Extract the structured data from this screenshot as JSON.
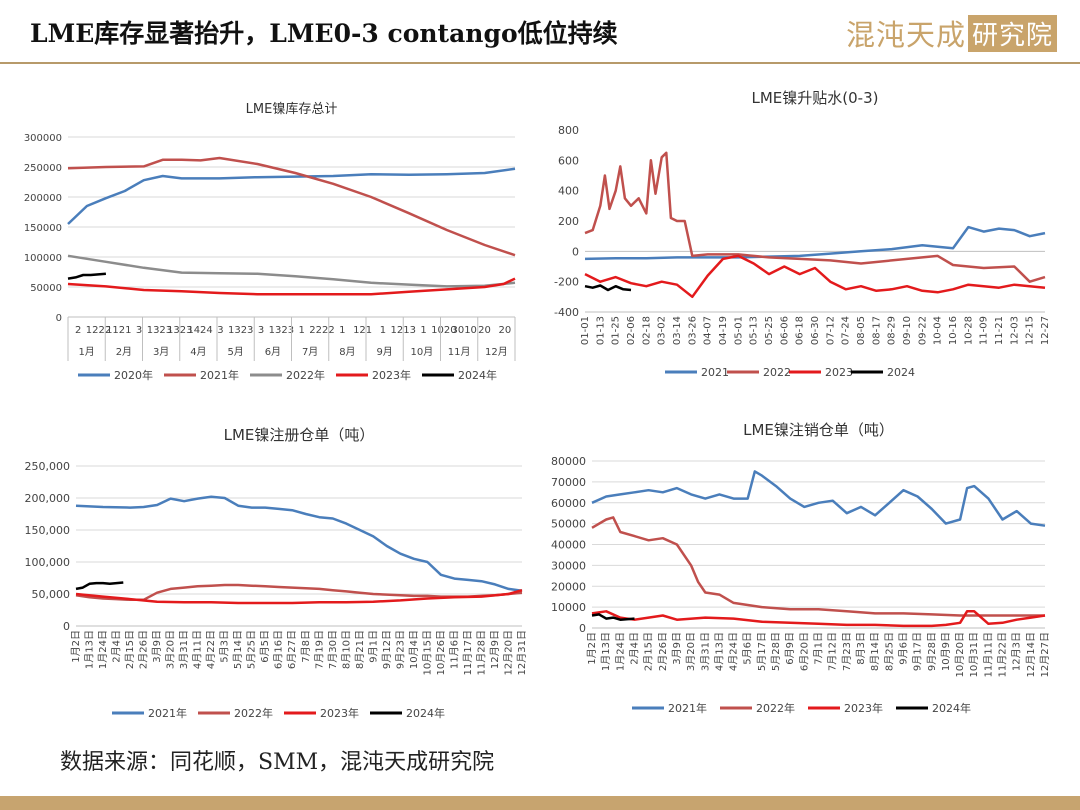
{
  "header": {
    "title": "LME库存显著抬升，LME0-3 contango低位持续",
    "logo_text": "混沌天成",
    "logo_box": "研究院"
  },
  "footer": {
    "source": "数据来源：同花顺，SMM，混沌天成研究院"
  },
  "colors": {
    "s2020": "#4a7ebb",
    "s2021": "#c0504d",
    "s2022": "#8c8c8c",
    "s2023": "#e31a1c",
    "s2024": "#000000"
  },
  "chart_data": [
    {
      "id": "inventory",
      "type": "line",
      "title": "LME镍库存总计",
      "ylim": [
        0,
        300000
      ],
      "yticks": [
        "0",
        "50000",
        "100000",
        "150000",
        "200000",
        "250000",
        "300000"
      ],
      "x_sublabels": [
        "2",
        "1222",
        "1121",
        "3",
        "1323",
        "1323",
        "1424",
        "3",
        "1323",
        "3",
        "1323",
        "1",
        "2222",
        "1",
        "121",
        "1",
        "1213",
        "1",
        "1020",
        "3010",
        "20",
        "20"
      ],
      "months": [
        "1月",
        "2月",
        "3月",
        "4月",
        "5月",
        "6月",
        "7月",
        "8月",
        "9月",
        "10月",
        "11月",
        "12月"
      ],
      "legend_position": "bottom",
      "series": [
        {
          "name": "2020年",
          "color": "#4a7ebb",
          "x": [
            0,
            0.5,
            1,
            1.5,
            2,
            2.5,
            3,
            4,
            5,
            6,
            7,
            8,
            9,
            10,
            11,
            11.8
          ],
          "values": [
            155000,
            185000,
            198000,
            210000,
            228000,
            235000,
            231000,
            231000,
            233000,
            234000,
            235000,
            238000,
            237000,
            238000,
            240000,
            247000
          ]
        },
        {
          "name": "2021年",
          "color": "#c0504d",
          "x": [
            0,
            1,
            2,
            2.5,
            3,
            3.5,
            4,
            5,
            6,
            7,
            8,
            9,
            10,
            11,
            11.8
          ],
          "values": [
            248000,
            250000,
            251000,
            262000,
            262000,
            261000,
            265000,
            255000,
            240000,
            222000,
            200000,
            173000,
            145000,
            120000,
            103000
          ]
        },
        {
          "name": "2022年",
          "color": "#8c8c8c",
          "x": [
            0,
            1,
            2,
            3,
            4,
            5,
            6,
            7,
            8,
            9,
            10,
            11,
            11.8
          ],
          "values": [
            102000,
            92000,
            82000,
            74000,
            73000,
            72000,
            68000,
            63000,
            57000,
            54000,
            51000,
            52000,
            57000
          ]
        },
        {
          "name": "2023年",
          "color": "#e31a1c",
          "x": [
            0,
            1,
            2,
            3,
            4,
            5,
            6,
            7,
            8,
            9,
            10,
            11,
            11.5,
            11.8
          ],
          "values": [
            55000,
            51000,
            45000,
            43000,
            40000,
            38000,
            38000,
            38000,
            38000,
            42000,
            46000,
            50000,
            55000,
            64000
          ]
        },
        {
          "name": "2024年",
          "color": "#000000",
          "x": [
            0,
            0.2,
            0.4,
            0.6,
            1.0
          ],
          "values": [
            64000,
            66000,
            70000,
            70000,
            72000
          ]
        }
      ]
    },
    {
      "id": "spread",
      "type": "line",
      "title": "LME镍升贴水(0-3)",
      "ylim": [
        -400,
        800
      ],
      "yticks": [
        "-400",
        "-200",
        "0",
        "200",
        "400",
        "600",
        "800"
      ],
      "categories": [
        "01-01",
        "01-13",
        "01-25",
        "02-06",
        "02-18",
        "03-02",
        "03-14",
        "03-26",
        "04-07",
        "04-19",
        "05-01",
        "05-13",
        "05-25",
        "06-06",
        "06-18",
        "06-30",
        "07-12",
        "07-24",
        "08-05",
        "08-17",
        "08-29",
        "09-10",
        "09-22",
        "10-04",
        "10-16",
        "10-28",
        "11-09",
        "11-21",
        "12-03",
        "12-15",
        "12-27"
      ],
      "legend_position": "bottom",
      "series": [
        {
          "name": "2021",
          "color": "#4a7ebb",
          "x": [
            0,
            2,
            4,
            6,
            8,
            10,
            12,
            14,
            16,
            18,
            20,
            22,
            24,
            25,
            26,
            27,
            28,
            29,
            30
          ],
          "values": [
            -50,
            -45,
            -45,
            -40,
            -40,
            -40,
            -35,
            -30,
            -15,
            0,
            15,
            40,
            20,
            160,
            130,
            150,
            140,
            100,
            120
          ]
        },
        {
          "name": "2022",
          "color": "#c0504d",
          "x": [
            0,
            0.5,
            1,
            1.3,
            1.6,
            2,
            2.3,
            2.6,
            3,
            3.5,
            4,
            4.3,
            4.6,
            5,
            5.3,
            5.6,
            6,
            6.5,
            7,
            8,
            9,
            10,
            12,
            14,
            16,
            18,
            20,
            22,
            23,
            24,
            26,
            28,
            29,
            30
          ],
          "values": [
            120,
            140,
            300,
            500,
            280,
            400,
            560,
            350,
            300,
            350,
            250,
            600,
            380,
            620,
            650,
            220,
            200,
            200,
            -30,
            -20,
            -20,
            -20,
            -40,
            -50,
            -60,
            -80,
            -60,
            -40,
            -30,
            -90,
            -110,
            -100,
            -200,
            -170
          ]
        },
        {
          "name": "2023",
          "color": "#e31a1c",
          "x": [
            0,
            1,
            2,
            3,
            4,
            5,
            6,
            7,
            8,
            9,
            10,
            11,
            12,
            13,
            14,
            15,
            16,
            17,
            18,
            19,
            20,
            21,
            22,
            23,
            24,
            25,
            26,
            27,
            28,
            29,
            30
          ],
          "values": [
            -150,
            -200,
            -170,
            -210,
            -230,
            -200,
            -220,
            -300,
            -160,
            -50,
            -30,
            -80,
            -150,
            -100,
            -150,
            -110,
            -200,
            -250,
            -230,
            -260,
            -250,
            -230,
            -260,
            -270,
            -250,
            -220,
            -230,
            -240,
            -220,
            -230,
            -240
          ]
        },
        {
          "name": "2024",
          "color": "#000000",
          "x": [
            0,
            0.5,
            1,
            1.5,
            2,
            2.5,
            3
          ],
          "values": [
            -230,
            -240,
            -225,
            -255,
            -230,
            -250,
            -255
          ]
        }
      ]
    },
    {
      "id": "registered",
      "type": "line",
      "title": "LME镍注册仓单（吨）",
      "ylim": [
        0,
        250000
      ],
      "yticks": [
        "0",
        "50,000",
        "100,000",
        "150,000",
        "200,000",
        "250,000"
      ],
      "categories": [
        "1月2日",
        "1月13日",
        "1月24日",
        "2月4日",
        "2月15日",
        "2月26日",
        "3月9日",
        "3月20日",
        "3月31日",
        "4月11日",
        "4月22日",
        "5月3日",
        "5月14日",
        "5月25日",
        "6月5日",
        "6月16日",
        "6月27日",
        "7月8日",
        "7月19日",
        "7月30日",
        "8月10日",
        "8月21日",
        "9月1日",
        "9月12日",
        "9月23日",
        "10月4日",
        "10月15日",
        "10月26日",
        "11月6日",
        "11月17日",
        "11月28日",
        "12月9日",
        "12月20日",
        "12月31日"
      ],
      "legend_position": "bottom",
      "series": [
        {
          "name": "2021年",
          "color": "#4a7ebb",
          "x": [
            0,
            2,
            4,
            5,
            6,
            7,
            8,
            9,
            10,
            11,
            12,
            13,
            14,
            15,
            16,
            17,
            18,
            19,
            20,
            21,
            22,
            23,
            24,
            25,
            26,
            27,
            28,
            29,
            30,
            31,
            32,
            33
          ],
          "values": [
            188000,
            186000,
            185000,
            186000,
            189000,
            199000,
            195000,
            199000,
            202000,
            200000,
            188000,
            185000,
            185000,
            183000,
            181000,
            175000,
            170000,
            168000,
            160000,
            150000,
            140000,
            125000,
            113000,
            105000,
            100000,
            80000,
            74000,
            72000,
            70000,
            65000,
            58000,
            55000
          ]
        },
        {
          "name": "2022年",
          "color": "#c0504d",
          "x": [
            0,
            1,
            2,
            3,
            4,
            5,
            6,
            7,
            8,
            9,
            10,
            11,
            12,
            13,
            14,
            15,
            16,
            17,
            18,
            19,
            20,
            21,
            22,
            23,
            24,
            25,
            26,
            27,
            28,
            29,
            30,
            31,
            32,
            33
          ],
          "values": [
            48000,
            45000,
            43000,
            42000,
            41000,
            41000,
            52000,
            58000,
            60000,
            62000,
            63000,
            64000,
            64000,
            63000,
            62000,
            61000,
            60000,
            59000,
            58000,
            56000,
            54000,
            52000,
            50000,
            49000,
            48000,
            47000,
            47000,
            46000,
            46000,
            46000,
            47000,
            48000,
            50000,
            52000
          ]
        },
        {
          "name": "2023年",
          "color": "#e31a1c",
          "x": [
            0,
            2,
            4,
            6,
            8,
            10,
            12,
            14,
            16,
            18,
            20,
            22,
            24,
            26,
            28,
            30,
            32,
            33
          ],
          "values": [
            50000,
            46000,
            42000,
            38000,
            37000,
            37000,
            36000,
            36000,
            36000,
            37000,
            37000,
            38000,
            40000,
            43000,
            45000,
            46000,
            50000,
            56000
          ]
        },
        {
          "name": "2024年",
          "color": "#000000",
          "x": [
            0,
            0.5,
            1,
            1.5,
            2,
            2.5,
            3.5
          ],
          "values": [
            58000,
            60000,
            66000,
            67000,
            67000,
            66000,
            68000
          ]
        }
      ]
    },
    {
      "id": "cancelled",
      "type": "line",
      "title": "LME镍注销仓单（吨）",
      "ylim": [
        0,
        80000
      ],
      "yticks": [
        "0",
        "10000",
        "20000",
        "30000",
        "40000",
        "50000",
        "60000",
        "70000",
        "80000"
      ],
      "categories": [
        "1月2日",
        "1月13日",
        "1月24日",
        "2月4日",
        "2月15日",
        "2月26日",
        "3月9日",
        "3月20日",
        "3月31日",
        "4月13日",
        "4月24日",
        "5月6日",
        "5月17日",
        "5月28日",
        "6月9日",
        "6月20日",
        "7月1日",
        "7月12日",
        "7月23日",
        "8月3日",
        "8月14日",
        "8月25日",
        "9月6日",
        "9月17日",
        "9月28日",
        "10月9日",
        "10月20日",
        "10月31日",
        "11月11日",
        "11月22日",
        "12月3日",
        "12月14日",
        "12月27日"
      ],
      "legend_position": "bottom",
      "series": [
        {
          "name": "2021年",
          "color": "#4a7ebb",
          "x": [
            0,
            1,
            2,
            3,
            4,
            5,
            6,
            7,
            8,
            9,
            10,
            11,
            11.5,
            12,
            13,
            14,
            15,
            16,
            17,
            18,
            19,
            20,
            21,
            22,
            23,
            24,
            25,
            26,
            26.5,
            27,
            28,
            29,
            30,
            31,
            32
          ],
          "values": [
            60000,
            63000,
            64000,
            65000,
            66000,
            65000,
            67000,
            64000,
            62000,
            64000,
            62000,
            62000,
            75000,
            73000,
            68000,
            62000,
            58000,
            60000,
            61000,
            55000,
            58000,
            54000,
            60000,
            66000,
            63000,
            57000,
            50000,
            52000,
            67000,
            68000,
            62000,
            52000,
            56000,
            50000,
            49000
          ]
        },
        {
          "name": "2022年",
          "color": "#c0504d",
          "x": [
            0,
            1,
            1.5,
            2,
            3,
            4,
            5,
            6,
            7,
            7.5,
            8,
            9,
            10,
            11,
            12,
            14,
            16,
            18,
            20,
            22,
            24,
            26,
            28,
            30,
            32
          ],
          "values": [
            48000,
            52000,
            53000,
            46000,
            44000,
            42000,
            43000,
            40000,
            30000,
            22000,
            17000,
            16000,
            12000,
            11000,
            10000,
            9000,
            9000,
            8000,
            7000,
            7000,
            6500,
            6000,
            6000,
            6000,
            6000
          ]
        },
        {
          "name": "2023年",
          "color": "#e31a1c",
          "x": [
            0,
            1,
            2,
            3,
            4,
            5,
            6,
            8,
            10,
            12,
            14,
            16,
            18,
            20,
            22,
            24,
            25,
            26,
            26.5,
            27,
            28,
            29,
            30,
            31,
            32
          ],
          "values": [
            7000,
            8000,
            5000,
            4000,
            5000,
            6000,
            4000,
            5000,
            4500,
            3000,
            2500,
            2000,
            1500,
            1500,
            1000,
            1000,
            1500,
            2500,
            8000,
            8000,
            2000,
            2500,
            4000,
            5000,
            6000
          ]
        },
        {
          "name": "2024年",
          "color": "#000000",
          "x": [
            0,
            0.5,
            1,
            1.5,
            2,
            3
          ],
          "values": [
            6000,
            6500,
            4500,
            5000,
            4000,
            4500
          ]
        }
      ]
    }
  ]
}
